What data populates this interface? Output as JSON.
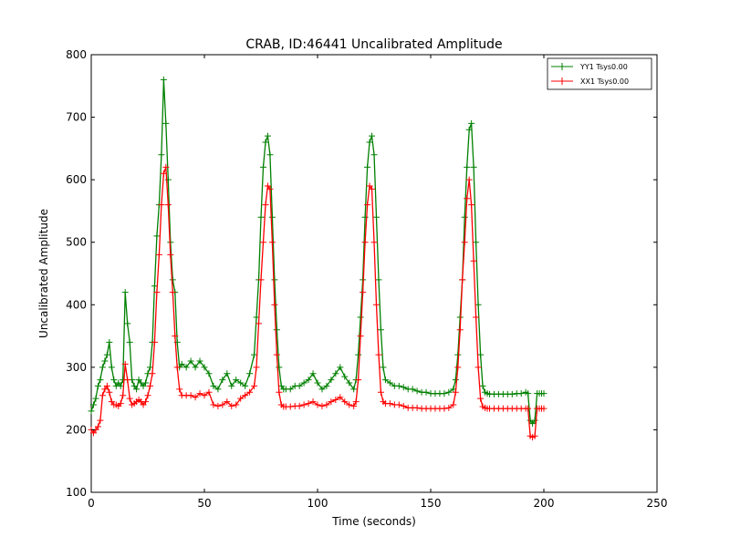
{
  "chart_data": {
    "type": "line",
    "title": "CRAB, ID:46441 Uncalibrated Amplitude",
    "xlabel": "Time (seconds)",
    "ylabel": "Uncalibrated Amplitude",
    "xlim": [
      0,
      250
    ],
    "ylim": [
      100,
      800
    ],
    "xticks": [
      "0",
      "50",
      "100",
      "150",
      "200",
      "250"
    ],
    "yticks": [
      "100",
      "200",
      "300",
      "400",
      "500",
      "600",
      "700",
      "800"
    ],
    "grid": false,
    "legend_position": "top-right",
    "marker": "plus",
    "series": [
      {
        "name": "YY1 Tsys0.00",
        "color": "#008000",
        "x": [
          0,
          1,
          2,
          3,
          4,
          5,
          6,
          7,
          8,
          9,
          10,
          11,
          12,
          13,
          14,
          15,
          16,
          17,
          18,
          19,
          20,
          21,
          22,
          23,
          24,
          25,
          26,
          27,
          28,
          29,
          30,
          31,
          32,
          33,
          34,
          35,
          36,
          37,
          38,
          39,
          40,
          42,
          44,
          46,
          48,
          50,
          52,
          54,
          56,
          58,
          60,
          62,
          64,
          66,
          68,
          70,
          72,
          73,
          74,
          75,
          76,
          77,
          78,
          79,
          80,
          81,
          82,
          83,
          84,
          85,
          86,
          88,
          90,
          92,
          94,
          96,
          98,
          100,
          102,
          104,
          106,
          108,
          110,
          112,
          114,
          116,
          117,
          118,
          119,
          120,
          121,
          122,
          123,
          124,
          125,
          126,
          127,
          128,
          129,
          130,
          132,
          134,
          136,
          138,
          140,
          142,
          144,
          146,
          148,
          150,
          152,
          154,
          156,
          158,
          160,
          161,
          162,
          163,
          164,
          165,
          166,
          167,
          168,
          169,
          170,
          171,
          172,
          173,
          174,
          175,
          176,
          178,
          180,
          182,
          184,
          186,
          188,
          190,
          192,
          193,
          194,
          195,
          196,
          197,
          198,
          199,
          200
        ],
        "values": [
          230,
          240,
          250,
          270,
          280,
          300,
          310,
          320,
          340,
          300,
          280,
          270,
          275,
          270,
          280,
          420,
          370,
          340,
          280,
          270,
          265,
          280,
          275,
          270,
          275,
          290,
          300,
          340,
          430,
          510,
          560,
          640,
          760,
          690,
          600,
          500,
          440,
          420,
          340,
          300,
          305,
          300,
          310,
          300,
          310,
          300,
          290,
          270,
          265,
          280,
          290,
          270,
          280,
          275,
          270,
          290,
          320,
          380,
          440,
          540,
          620,
          660,
          670,
          640,
          540,
          440,
          360,
          300,
          270,
          265,
          265,
          265,
          270,
          270,
          275,
          280,
          290,
          275,
          265,
          270,
          280,
          290,
          300,
          285,
          275,
          265,
          280,
          320,
          380,
          440,
          540,
          620,
          660,
          670,
          640,
          540,
          440,
          360,
          300,
          280,
          275,
          270,
          270,
          268,
          265,
          265,
          262,
          260,
          260,
          258,
          258,
          258,
          258,
          260,
          265,
          280,
          320,
          380,
          440,
          540,
          620,
          680,
          690,
          620,
          500,
          400,
          320,
          270,
          260,
          258,
          257,
          257,
          257,
          257,
          257,
          257,
          258,
          258,
          260,
          258,
          215,
          210,
          215,
          258,
          258,
          258,
          258
        ]
      },
      {
        "name": "XX1 Tsys0.00",
        "color": "#ff0000",
        "x": [
          0,
          1,
          2,
          3,
          4,
          5,
          6,
          7,
          8,
          9,
          10,
          11,
          12,
          13,
          14,
          15,
          16,
          17,
          18,
          19,
          20,
          21,
          22,
          23,
          24,
          25,
          26,
          27,
          28,
          29,
          30,
          31,
          32,
          33,
          34,
          35,
          36,
          37,
          38,
          39,
          40,
          42,
          44,
          46,
          48,
          50,
          52,
          54,
          56,
          58,
          60,
          62,
          64,
          66,
          68,
          70,
          72,
          73,
          74,
          75,
          76,
          77,
          78,
          79,
          80,
          81,
          82,
          83,
          84,
          85,
          86,
          88,
          90,
          92,
          94,
          96,
          98,
          100,
          102,
          104,
          106,
          108,
          110,
          112,
          114,
          116,
          117,
          118,
          119,
          120,
          121,
          122,
          123,
          124,
          125,
          126,
          127,
          128,
          129,
          130,
          132,
          134,
          136,
          138,
          140,
          142,
          144,
          146,
          148,
          150,
          152,
          154,
          156,
          158,
          160,
          161,
          162,
          163,
          164,
          165,
          166,
          167,
          168,
          169,
          170,
          171,
          172,
          173,
          174,
          175,
          176,
          178,
          180,
          182,
          184,
          186,
          188,
          190,
          192,
          193,
          194,
          195,
          196,
          197,
          198,
          199,
          200
        ],
        "values": [
          200,
          195,
          200,
          205,
          215,
          255,
          265,
          270,
          260,
          245,
          240,
          240,
          238,
          242,
          255,
          305,
          280,
          250,
          240,
          242,
          245,
          248,
          245,
          240,
          245,
          255,
          270,
          290,
          340,
          420,
          480,
          560,
          610,
          620,
          560,
          480,
          420,
          350,
          300,
          265,
          255,
          255,
          255,
          252,
          258,
          255,
          260,
          240,
          238,
          240,
          245,
          238,
          240,
          250,
          255,
          260,
          270,
          300,
          370,
          440,
          500,
          560,
          590,
          585,
          500,
          400,
          320,
          260,
          240,
          237,
          237,
          237,
          238,
          238,
          240,
          242,
          245,
          240,
          238,
          240,
          245,
          248,
          252,
          245,
          240,
          238,
          245,
          280,
          350,
          420,
          500,
          560,
          590,
          585,
          500,
          400,
          320,
          260,
          245,
          242,
          242,
          240,
          240,
          238,
          235,
          235,
          235,
          234,
          234,
          234,
          234,
          234,
          234,
          235,
          240,
          260,
          300,
          360,
          440,
          500,
          570,
          600,
          560,
          470,
          380,
          300,
          250,
          237,
          235,
          234,
          234,
          234,
          234,
          234,
          234,
          234,
          234,
          234,
          234,
          234,
          190,
          188,
          190,
          234,
          234,
          234,
          234
        ]
      }
    ]
  }
}
